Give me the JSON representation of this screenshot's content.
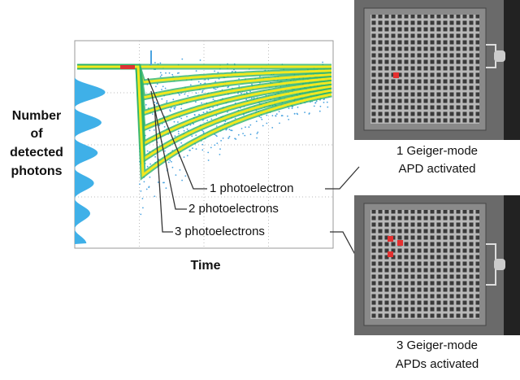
{
  "y_axis_label": [
    "Number",
    "of",
    "detected",
    "photons"
  ],
  "x_axis_label": "Time",
  "trace_labels": [
    "1 photoelectron",
    "2 photoelectrons",
    "3 photoelectrons"
  ],
  "panels": [
    {
      "caption": [
        "1 Geiger-mode",
        "APD activated"
      ]
    },
    {
      "caption": [
        "3 Geiger-mode",
        "APDs activated"
      ]
    }
  ]
}
